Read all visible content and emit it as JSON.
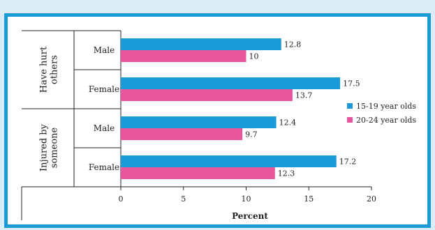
{
  "chart_data": {
    "type": "bar",
    "orientation": "horizontal",
    "groups": [
      {
        "label": "Have hurt others",
        "categories": [
          "Male",
          "Female"
        ]
      },
      {
        "label": "Injured by someone",
        "categories": [
          "Male",
          "Female"
        ]
      }
    ],
    "categories": [
      "Male",
      "Female",
      "Male",
      "Female"
    ],
    "series": [
      {
        "name": "15-19 year olds",
        "color": "#1a9ad6",
        "values": [
          12.8,
          17.5,
          12.4,
          17.2
        ]
      },
      {
        "name": "20-24 year olds",
        "color": "#e8559c",
        "values": [
          10,
          13.7,
          9.7,
          12.3
        ]
      }
    ],
    "value_labels": [
      [
        "12.8",
        "17.5",
        "12.4",
        "17.2"
      ],
      [
        "10",
        "13.7",
        "9.7",
        "12.3"
      ]
    ],
    "xlabel": "Percent",
    "xlim": [
      0,
      20
    ],
    "xticks": [
      "0",
      "5",
      "10",
      "15",
      "20"
    ],
    "grid": false,
    "legend_position": "right"
  }
}
